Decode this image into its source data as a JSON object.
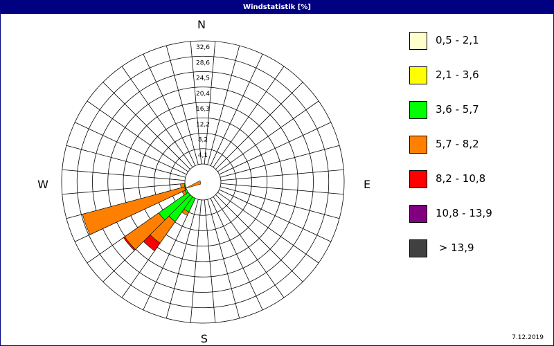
{
  "title": "Windstatistik [%]",
  "date": "7.12.2019",
  "directions": {
    "n": "N",
    "e": "E",
    "s": "S",
    "w": "W"
  },
  "chart_data": {
    "type": "windrose",
    "title": "Windstatistik [%]",
    "sectors": 36,
    "sector_width_deg": 10,
    "radial_ticks": [
      "4,1",
      "8,2",
      "12,2",
      "16,3",
      "20,4",
      "24,5",
      "28,6",
      "32,6"
    ],
    "rmax": 32.6,
    "grid": true,
    "legend_placement": "right",
    "speed_classes": [
      {
        "label": "0,5 - 2,1",
        "color": "#ffffcc"
      },
      {
        "label": "2,1 - 3,6",
        "color": "#ffff00"
      },
      {
        "label": "3,6 - 5,7",
        "color": "#00ff00"
      },
      {
        "label": "5,7 - 8,2",
        "color": "#ff8000"
      },
      {
        "label": "8,2 - 10,8",
        "color": "#ff0000"
      },
      {
        "label": "10,8 - 13,9",
        "color": "#800080"
      },
      {
        "label": " > 13,9",
        "color": "#404040"
      }
    ],
    "series": [
      {
        "direction_deg": 210,
        "values": [
          0,
          0,
          4.0,
          1.0,
          0,
          0,
          0
        ]
      },
      {
        "direction_deg": 220,
        "values": [
          0,
          0,
          8.0,
          7.0,
          2.5,
          0,
          0
        ]
      },
      {
        "direction_deg": 230,
        "values": [
          0,
          0,
          9.5,
          11.0,
          0.4,
          0,
          0
        ]
      },
      {
        "direction_deg": 240,
        "values": [
          0,
          0,
          0.5,
          0.8,
          0,
          0,
          0
        ]
      },
      {
        "direction_deg": 250,
        "values": [
          0,
          0,
          0.2,
          28.0,
          0,
          0,
          0
        ]
      },
      {
        "direction_deg": 260,
        "values": [
          0,
          0,
          0.2,
          1.0,
          0,
          0,
          0
        ]
      }
    ]
  }
}
